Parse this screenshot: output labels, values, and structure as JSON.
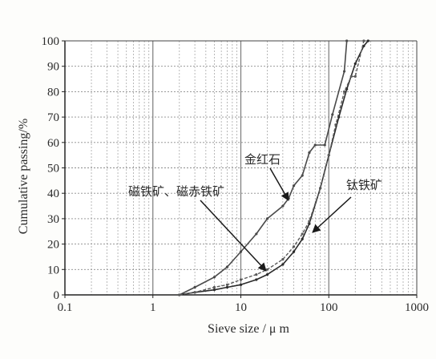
{
  "chart_data": {
    "type": "line",
    "title": "",
    "xlabel": "Sieve size / μ m",
    "ylabel": "Cumulative passing/%",
    "x_scale": "log",
    "xlim": [
      0.1,
      1000
    ],
    "ylim": [
      0,
      100
    ],
    "x_ticks": [
      {
        "value": 0.1,
        "label": "0.1"
      },
      {
        "value": 1,
        "label": "1"
      },
      {
        "value": 10,
        "label": "10"
      },
      {
        "value": 100,
        "label": "100"
      },
      {
        "value": 1000,
        "label": "1000"
      }
    ],
    "y_ticks": [
      0,
      10,
      20,
      30,
      40,
      50,
      60,
      70,
      80,
      90,
      100
    ],
    "grid": true,
    "series": [
      {
        "name": "金红石",
        "x": [
          2,
          3,
          5,
          7,
          10,
          15,
          20,
          30,
          35,
          40,
          50,
          60,
          70,
          90,
          110,
          150,
          160
        ],
        "y": [
          0,
          3,
          7,
          11,
          17,
          24,
          30,
          35,
          38,
          43,
          47,
          56,
          59,
          59,
          71,
          88,
          100
        ]
      },
      {
        "name": "磁铁矿、磁赤铁矿",
        "x": [
          2,
          3,
          5,
          7,
          10,
          15,
          20,
          30,
          40,
          50,
          60,
          80,
          100,
          130,
          160,
          200,
          250,
          280
        ],
        "y": [
          0,
          1,
          2,
          3,
          4,
          6,
          8,
          12,
          17,
          22,
          28,
          42,
          55,
          70,
          81,
          91,
          98,
          100
        ]
      },
      {
        "name": "钛铁矿",
        "x": [
          2,
          3,
          5,
          7,
          10,
          15,
          20,
          30,
          40,
          50,
          60,
          80,
          100,
          120,
          150,
          180,
          200,
          250
        ],
        "y": [
          0,
          1,
          3,
          4,
          6,
          8,
          10,
          14,
          19,
          24,
          29,
          42,
          55,
          67,
          80,
          86,
          86,
          100
        ]
      }
    ],
    "annotations": [
      {
        "text": "金红石"
      },
      {
        "text": "磁铁矿、磁赤铁矿"
      },
      {
        "text": "钛铁矿"
      }
    ]
  }
}
